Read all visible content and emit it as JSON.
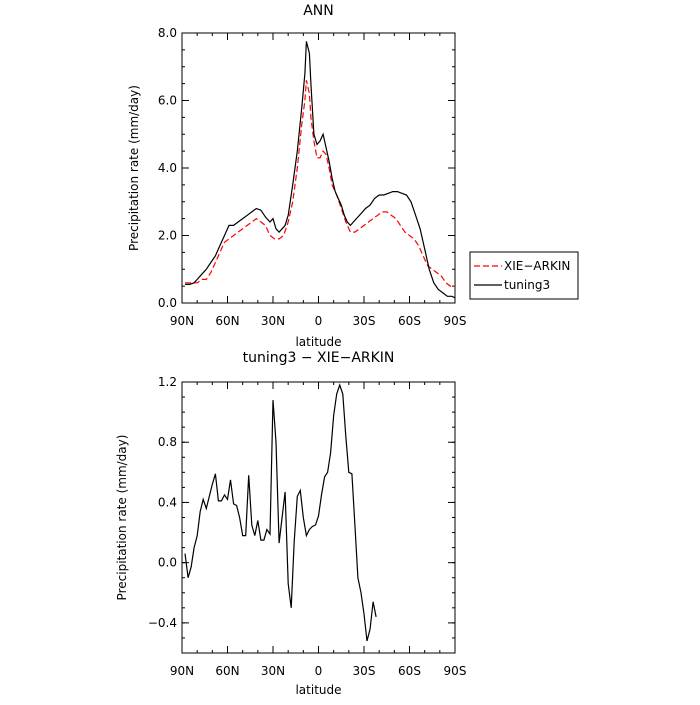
{
  "chart_data": [
    {
      "type": "line",
      "title": "ANN",
      "xlabel": "latitude",
      "ylabel": "Precipitation rate (mm/day)",
      "xlim": [
        90,
        -90
      ],
      "ylim": [
        0,
        8
      ],
      "x_ticks": [
        {
          "value": 90,
          "label": "90N"
        },
        {
          "value": 60,
          "label": "60N"
        },
        {
          "value": 30,
          "label": "30N"
        },
        {
          "value": 0,
          "label": "0"
        },
        {
          "value": -30,
          "label": "30S"
        },
        {
          "value": -60,
          "label": "60S"
        },
        {
          "value": -90,
          "label": "90S"
        }
      ],
      "y_ticks": [
        {
          "value": 0,
          "label": "0.0"
        },
        {
          "value": 2,
          "label": "2.0"
        },
        {
          "value": 4,
          "label": "4.0"
        },
        {
          "value": 6,
          "label": "6.0"
        },
        {
          "value": 8,
          "label": "8.0"
        }
      ],
      "legend_position": "outside-right",
      "series": [
        {
          "name": "XIE−ARKIN",
          "color": "#ff0000",
          "dash": "dashed",
          "points": [
            [
              88,
              0.6
            ],
            [
              85,
              0.6
            ],
            [
              82,
              0.6
            ],
            [
              80,
              0.6
            ],
            [
              77,
              0.7
            ],
            [
              74,
              0.7
            ],
            [
              71,
              0.9
            ],
            [
              68,
              1.2
            ],
            [
              65,
              1.5
            ],
            [
              62,
              1.8
            ],
            [
              59,
              1.9
            ],
            [
              56,
              2.0
            ],
            [
              53,
              2.1
            ],
            [
              50,
              2.2
            ],
            [
              47,
              2.3
            ],
            [
              44,
              2.4
            ],
            [
              41,
              2.5
            ],
            [
              38,
              2.4
            ],
            [
              35,
              2.3
            ],
            [
              32,
              2.0
            ],
            [
              29,
              1.9
            ],
            [
              26,
              1.9
            ],
            [
              23,
              2.0
            ],
            [
              20,
              2.4
            ],
            [
              17,
              3.0
            ],
            [
              14,
              4.0
            ],
            [
              11,
              5.3
            ],
            [
              9,
              6.0
            ],
            [
              8,
              6.6
            ],
            [
              6,
              6.2
            ],
            [
              5,
              5.5
            ],
            [
              3,
              4.8
            ],
            [
              1,
              4.3
            ],
            [
              -1,
              4.3
            ],
            [
              -3,
              4.5
            ],
            [
              -5,
              4.4
            ],
            [
              -7,
              4.0
            ],
            [
              -9,
              3.5
            ],
            [
              -12,
              3.2
            ],
            [
              -15,
              2.8
            ],
            [
              -18,
              2.4
            ],
            [
              -21,
              2.1
            ],
            [
              -24,
              2.1
            ],
            [
              -27,
              2.2
            ],
            [
              -30,
              2.3
            ],
            [
              -33,
              2.4
            ],
            [
              -36,
              2.5
            ],
            [
              -39,
              2.6
            ],
            [
              -42,
              2.7
            ],
            [
              -45,
              2.7
            ],
            [
              -48,
              2.6
            ],
            [
              -51,
              2.5
            ],
            [
              -54,
              2.3
            ],
            [
              -57,
              2.1
            ],
            [
              -60,
              2.0
            ],
            [
              -63,
              1.9
            ],
            [
              -66,
              1.7
            ],
            [
              -69,
              1.4
            ],
            [
              -72,
              1.1
            ],
            [
              -75,
              1.0
            ],
            [
              -78,
              0.9
            ],
            [
              -81,
              0.8
            ],
            [
              -84,
              0.6
            ],
            [
              -87,
              0.5
            ],
            [
              -90,
              0.5
            ]
          ]
        },
        {
          "name": "tuning3",
          "color": "#000000",
          "dash": "solid",
          "points": [
            [
              88,
              0.55
            ],
            [
              85,
              0.55
            ],
            [
              82,
              0.6
            ],
            [
              80,
              0.7
            ],
            [
              77,
              0.85
            ],
            [
              74,
              1.0
            ],
            [
              71,
              1.2
            ],
            [
              68,
              1.4
            ],
            [
              65,
              1.7
            ],
            [
              62,
              2.0
            ],
            [
              59,
              2.3
            ],
            [
              56,
              2.3
            ],
            [
              53,
              2.4
            ],
            [
              50,
              2.5
            ],
            [
              47,
              2.6
            ],
            [
              44,
              2.7
            ],
            [
              41,
              2.8
            ],
            [
              38,
              2.75
            ],
            [
              35,
              2.55
            ],
            [
              32,
              2.4
            ],
            [
              30,
              2.5
            ],
            [
              28,
              2.2
            ],
            [
              26,
              2.1
            ],
            [
              24,
              2.2
            ],
            [
              22,
              2.3
            ],
            [
              20,
              2.6
            ],
            [
              17,
              3.5
            ],
            [
              14,
              4.5
            ],
            [
              11,
              5.8
            ],
            [
              9,
              6.8
            ],
            [
              8,
              7.75
            ],
            [
              6,
              7.4
            ],
            [
              5,
              6.5
            ],
            [
              3,
              5.0
            ],
            [
              1,
              4.7
            ],
            [
              -1,
              4.8
            ],
            [
              -3,
              5.0
            ],
            [
              -5,
              4.6
            ],
            [
              -7,
              4.2
            ],
            [
              -9,
              3.7
            ],
            [
              -11,
              3.3
            ],
            [
              -13,
              3.1
            ],
            [
              -15,
              2.9
            ],
            [
              -17,
              2.6
            ],
            [
              -19,
              2.4
            ],
            [
              -21,
              2.3
            ],
            [
              -23,
              2.4
            ],
            [
              -25,
              2.5
            ],
            [
              -28,
              2.65
            ],
            [
              -31,
              2.8
            ],
            [
              -34,
              2.9
            ],
            [
              -37,
              3.1
            ],
            [
              -40,
              3.2
            ],
            [
              -43,
              3.2
            ],
            [
              -46,
              3.25
            ],
            [
              -49,
              3.3
            ],
            [
              -52,
              3.3
            ],
            [
              -55,
              3.25
            ],
            [
              -58,
              3.2
            ],
            [
              -61,
              3.0
            ],
            [
              -64,
              2.6
            ],
            [
              -67,
              2.2
            ],
            [
              -70,
              1.6
            ],
            [
              -73,
              1.0
            ],
            [
              -76,
              0.6
            ],
            [
              -79,
              0.4
            ],
            [
              -82,
              0.3
            ],
            [
              -85,
              0.2
            ],
            [
              -88,
              0.2
            ],
            [
              -90,
              0.15
            ]
          ]
        }
      ]
    },
    {
      "type": "line",
      "title": "tuning3 − XIE−ARKIN",
      "xlabel": "latitude",
      "ylabel": "Precipitation rate (mm/day)",
      "xlim": [
        90,
        -90
      ],
      "ylim": [
        -0.6,
        1.2
      ],
      "x_ticks": [
        {
          "value": 90,
          "label": "90N"
        },
        {
          "value": 60,
          "label": "60N"
        },
        {
          "value": 30,
          "label": "30N"
        },
        {
          "value": 0,
          "label": "0"
        },
        {
          "value": -30,
          "label": "30S"
        },
        {
          "value": -60,
          "label": "60S"
        },
        {
          "value": -90,
          "label": "90S"
        }
      ],
      "y_ticks": [
        {
          "value": -0.4,
          "label": "−0.4"
        },
        {
          "value": 0,
          "label": "0.0"
        },
        {
          "value": 0.4,
          "label": "0.4"
        },
        {
          "value": 0.8,
          "label": "0.8"
        },
        {
          "value": 1.2,
          "label": "1.2"
        }
      ],
      "series": [
        {
          "color": "#000000",
          "dash": "solid",
          "points": [
            [
              88,
              0.06
            ],
            [
              86,
              -0.1
            ],
            [
              84,
              -0.03
            ],
            [
              82,
              0.1
            ],
            [
              80,
              0.18
            ],
            [
              78,
              0.34
            ],
            [
              76,
              0.42
            ],
            [
              74,
              0.36
            ],
            [
              72,
              0.44
            ],
            [
              70,
              0.52
            ],
            [
              68,
              0.59
            ],
            [
              66,
              0.41
            ],
            [
              64,
              0.41
            ],
            [
              62,
              0.45
            ],
            [
              60,
              0.42
            ],
            [
              58,
              0.55
            ],
            [
              56,
              0.39
            ],
            [
              54,
              0.38
            ],
            [
              52,
              0.3
            ],
            [
              50,
              0.18
            ],
            [
              48,
              0.18
            ],
            [
              46,
              0.58
            ],
            [
              44,
              0.25
            ],
            [
              42,
              0.18
            ],
            [
              40,
              0.28
            ],
            [
              38,
              0.15
            ],
            [
              36,
              0.15
            ],
            [
              34,
              0.22
            ],
            [
              32,
              0.19
            ],
            [
              30,
              1.08
            ],
            [
              28,
              0.8
            ],
            [
              26,
              0.13
            ],
            [
              24,
              0.3
            ],
            [
              22,
              0.47
            ],
            [
              20,
              -0.14
            ],
            [
              18,
              -0.3
            ],
            [
              16,
              0.14
            ],
            [
              14,
              0.44
            ],
            [
              12,
              0.48
            ],
            [
              10,
              0.3
            ],
            [
              8,
              0.18
            ],
            [
              6,
              0.22
            ],
            [
              4,
              0.24
            ],
            [
              2,
              0.25
            ],
            [
              0,
              0.31
            ],
            [
              -2,
              0.45
            ],
            [
              -4,
              0.57
            ],
            [
              -6,
              0.6
            ],
            [
              -8,
              0.73
            ],
            [
              -10,
              0.98
            ],
            [
              -12,
              1.12
            ],
            [
              -14,
              1.18
            ],
            [
              -16,
              1.12
            ],
            [
              -18,
              0.84
            ],
            [
              -20,
              0.6
            ],
            [
              -22,
              0.59
            ],
            [
              -24,
              0.25
            ],
            [
              -26,
              -0.1
            ],
            [
              -28,
              -0.2
            ],
            [
              -30,
              -0.34
            ],
            [
              -32,
              -0.52
            ],
            [
              -34,
              -0.44
            ],
            [
              -36,
              -0.26
            ],
            [
              -38,
              -0.36
            ]
          ]
        }
      ]
    }
  ]
}
